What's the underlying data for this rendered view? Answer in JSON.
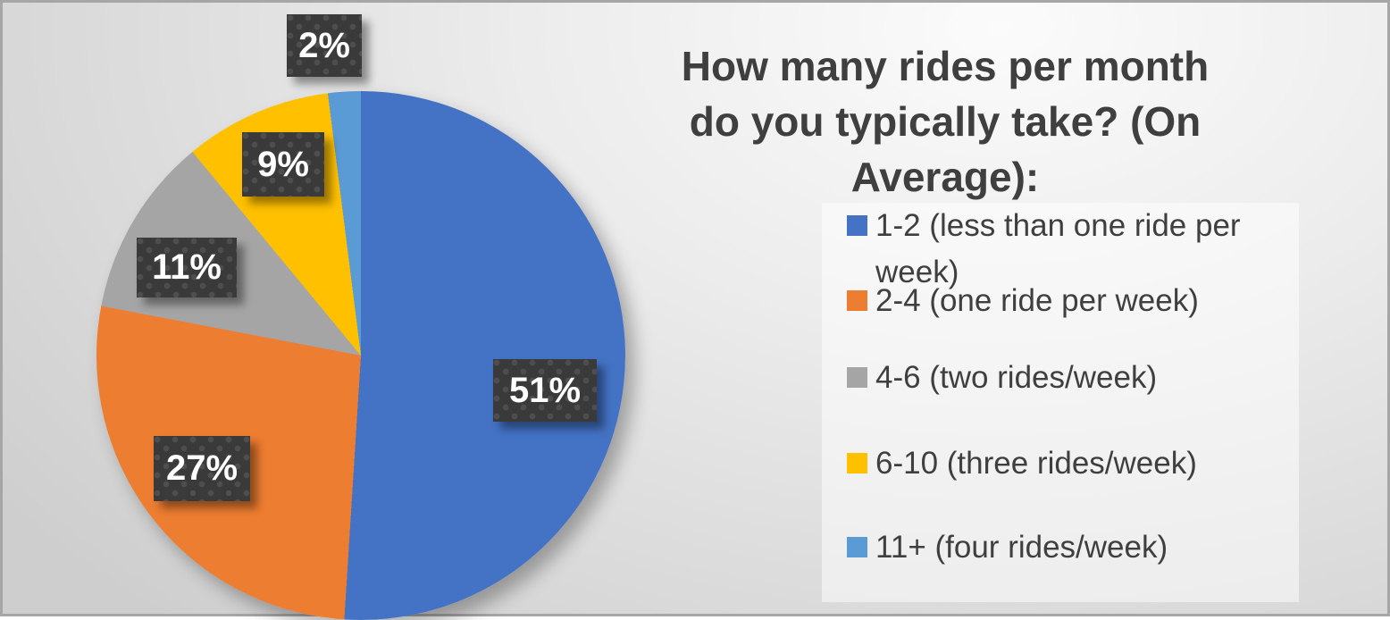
{
  "chart_data": {
    "type": "pie",
    "title": "How many rides per month do you typically take? (On Average):",
    "title_line1": "How many rides per month",
    "title_line2": "do you typically take? (On Average):",
    "start_angle_deg": 0,
    "direction": "clockwise",
    "legend_position": "right",
    "data_labels_style": "dark-textured-callout-boxes-with-percent",
    "slices": [
      {
        "label": "1-2 (less than one ride per week)",
        "value": 51,
        "pct_label": "51%",
        "color": "#4472C4"
      },
      {
        "label": "2-4 (one ride per week)",
        "value": 27,
        "pct_label": "27%",
        "color": "#ED7D31"
      },
      {
        "label": "4-6 (two rides/week)",
        "value": 11,
        "pct_label": "11%",
        "color": "#A5A5A5"
      },
      {
        "label": "6-10 (three rides/week)",
        "value": 9,
        "pct_label": "9%",
        "color": "#FFC000"
      },
      {
        "label": "11+ (four rides/week)",
        "value": 2,
        "pct_label": "2%",
        "color": "#5B9BD5"
      }
    ]
  },
  "colors": {
    "title_text": "#3f3f3f",
    "legend_text": "#3f3f3f",
    "callout_background": "#3a3a3a",
    "callout_text": "#ffffff",
    "page_background_light": "#fbfbfb",
    "page_background_dark": "#cecece"
  }
}
